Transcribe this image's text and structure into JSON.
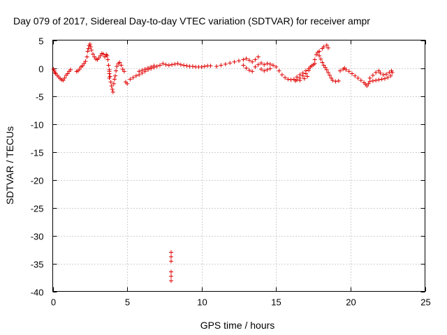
{
  "chart_data": {
    "type": "scatter",
    "title": "Day 079 of 2017, Sidereal Day-to-day VTEC variation (SDTVAR) for receiver ampr",
    "xlabel": "GPS time / hours",
    "ylabel": "SDTVAR / TECUs",
    "xlim": [
      0,
      25
    ],
    "ylim": [
      -40,
      5
    ],
    "xticks": [
      "0",
      "5",
      "10",
      "15",
      "20",
      "25"
    ],
    "yticks": [
      "5",
      "0",
      "-5",
      "-10",
      "-15",
      "-20",
      "-25",
      "-30",
      "-35",
      "-40"
    ],
    "grid": true,
    "marker": "+",
    "marker_color": "#e00000",
    "series": [
      {
        "name": "SDTVAR",
        "points": [
          [
            0.05,
            -0.2
          ],
          [
            0.1,
            -0.5
          ],
          [
            0.15,
            -0.8
          ],
          [
            0.2,
            -1.0
          ],
          [
            0.3,
            -1.3
          ],
          [
            0.4,
            -1.6
          ],
          [
            0.5,
            -1.9
          ],
          [
            0.6,
            -2.1
          ],
          [
            0.7,
            -2.2
          ],
          [
            0.8,
            -1.8
          ],
          [
            0.9,
            -1.3
          ],
          [
            1.0,
            -1.0
          ],
          [
            1.1,
            -0.6
          ],
          [
            1.2,
            -0.3
          ],
          [
            1.6,
            -0.6
          ],
          [
            1.7,
            -0.5
          ],
          [
            1.8,
            -0.2
          ],
          [
            1.9,
            0.2
          ],
          [
            2.0,
            0.4
          ],
          [
            2.1,
            0.8
          ],
          [
            2.2,
            1.2
          ],
          [
            2.3,
            2.0
          ],
          [
            2.35,
            3.0
          ],
          [
            2.4,
            3.5
          ],
          [
            2.45,
            4.0
          ],
          [
            2.5,
            4.3
          ],
          [
            2.55,
            3.8
          ],
          [
            2.6,
            3.2
          ],
          [
            2.7,
            2.5
          ],
          [
            2.8,
            2.0
          ],
          [
            2.9,
            1.6
          ],
          [
            3.0,
            1.5
          ],
          [
            3.1,
            1.8
          ],
          [
            3.2,
            2.2
          ],
          [
            3.3,
            2.6
          ],
          [
            3.4,
            2.5
          ],
          [
            3.5,
            2.0
          ],
          [
            3.6,
            2.4
          ],
          [
            3.65,
            2.2
          ],
          [
            3.7,
            1.5
          ],
          [
            3.75,
            0.5
          ],
          [
            3.8,
            -0.3
          ],
          [
            3.85,
            -1.5
          ],
          [
            3.9,
            -2.5
          ],
          [
            3.95,
            -3.2
          ],
          [
            4.0,
            -3.8
          ],
          [
            4.05,
            -4.3
          ],
          [
            4.1,
            -2.8
          ],
          [
            4.15,
            -2.0
          ],
          [
            4.2,
            -1.4
          ],
          [
            4.25,
            -0.5
          ],
          [
            4.3,
            0.3
          ],
          [
            4.4,
            0.8
          ],
          [
            4.5,
            1.0
          ],
          [
            4.6,
            0.5
          ],
          [
            4.7,
            -0.2
          ],
          [
            4.8,
            -0.6
          ],
          [
            4.9,
            -2.5
          ],
          [
            5.0,
            -2.8
          ],
          [
            3.8,
            -1.0
          ],
          [
            3.8,
            -1.8
          ],
          [
            3.8,
            -0.6
          ],
          [
            5.2,
            -2.0
          ],
          [
            5.4,
            -1.7
          ],
          [
            5.6,
            -1.4
          ],
          [
            5.8,
            -1.2
          ],
          [
            6.0,
            -0.9
          ],
          [
            6.2,
            -0.6
          ],
          [
            6.4,
            -0.3
          ],
          [
            6.6,
            -0.1
          ],
          [
            6.8,
            0.1
          ],
          [
            7.0,
            0.3
          ],
          [
            7.2,
            0.5
          ],
          [
            7.4,
            0.8
          ],
          [
            7.6,
            0.6
          ],
          [
            7.8,
            0.5
          ],
          [
            8.0,
            0.6
          ],
          [
            8.2,
            0.7
          ],
          [
            8.4,
            0.8
          ],
          [
            8.6,
            0.6
          ],
          [
            8.8,
            0.5
          ],
          [
            9.0,
            0.4
          ],
          [
            9.2,
            0.3
          ],
          [
            9.4,
            0.3
          ],
          [
            9.6,
            0.2
          ],
          [
            9.8,
            0.2
          ],
          [
            10.0,
            0.2
          ],
          [
            10.2,
            0.3
          ],
          [
            10.4,
            0.4
          ],
          [
            10.6,
            0.4
          ],
          [
            5.8,
            -0.6
          ],
          [
            6.0,
            -0.4
          ],
          [
            6.2,
            -0.2
          ],
          [
            6.4,
            0.0
          ],
          [
            6.6,
            0.2
          ],
          [
            6.8,
            0.4
          ],
          [
            7.95,
            -33.0
          ],
          [
            7.95,
            -33.8
          ],
          [
            7.95,
            -34.6
          ],
          [
            7.95,
            -36.5
          ],
          [
            7.95,
            -37.3
          ],
          [
            7.95,
            -38.1
          ],
          [
            11.0,
            0.3
          ],
          [
            11.3,
            0.5
          ],
          [
            11.6,
            0.7
          ],
          [
            11.9,
            0.9
          ],
          [
            12.2,
            1.1
          ],
          [
            12.5,
            1.3
          ],
          [
            12.8,
            1.5
          ],
          [
            13.0,
            1.7
          ],
          [
            13.2,
            1.4
          ],
          [
            13.4,
            1.1
          ],
          [
            13.6,
            1.5
          ],
          [
            13.8,
            2.0
          ],
          [
            12.8,
            0.5
          ],
          [
            13.0,
            0.0
          ],
          [
            13.2,
            -0.4
          ],
          [
            13.4,
            -0.6
          ],
          [
            13.6,
            0.2
          ],
          [
            13.8,
            0.6
          ],
          [
            14.0,
            0.9
          ],
          [
            14.2,
            0.6
          ],
          [
            14.4,
            0.8
          ],
          [
            14.6,
            0.7
          ],
          [
            14.8,
            0.5
          ],
          [
            14.0,
            -0.2
          ],
          [
            14.2,
            -0.5
          ],
          [
            14.4,
            -0.3
          ],
          [
            14.6,
            -0.1
          ],
          [
            15.0,
            0.2
          ],
          [
            15.2,
            -0.5
          ],
          [
            15.4,
            -1.2
          ],
          [
            15.6,
            -1.7
          ],
          [
            15.8,
            -2.0
          ],
          [
            16.0,
            -2.1
          ],
          [
            16.2,
            -2.0
          ],
          [
            16.4,
            -2.1
          ],
          [
            16.6,
            -1.8
          ],
          [
            16.8,
            -1.4
          ],
          [
            17.0,
            -1.0
          ],
          [
            17.2,
            -0.4
          ],
          [
            16.4,
            -1.6
          ],
          [
            16.6,
            -1.2
          ],
          [
            16.8,
            -0.9
          ],
          [
            17.0,
            -0.5
          ],
          [
            17.2,
            -0.1
          ],
          [
            17.3,
            0.2
          ],
          [
            17.4,
            0.4
          ],
          [
            17.5,
            0.6
          ],
          [
            17.6,
            0.8
          ],
          [
            16.3,
            -2.3
          ],
          [
            16.6,
            -2.2
          ],
          [
            16.9,
            -1.9
          ],
          [
            17.1,
            -1.5
          ],
          [
            17.6,
            1.5
          ],
          [
            17.7,
            2.4
          ],
          [
            17.8,
            2.8
          ],
          [
            17.9,
            2.2
          ],
          [
            18.0,
            1.6
          ],
          [
            18.1,
            1.0
          ],
          [
            18.2,
            0.5
          ],
          [
            18.3,
            0.1
          ],
          [
            18.4,
            -0.3
          ],
          [
            18.5,
            -0.8
          ],
          [
            18.6,
            -1.3
          ],
          [
            18.7,
            -1.8
          ],
          [
            18.8,
            -2.2
          ],
          [
            19.0,
            -2.4
          ],
          [
            19.2,
            -2.3
          ],
          [
            17.9,
            3.0
          ],
          [
            18.1,
            3.5
          ],
          [
            18.2,
            3.8
          ],
          [
            18.4,
            4.1
          ],
          [
            18.5,
            3.6
          ],
          [
            19.3,
            -0.5
          ],
          [
            19.5,
            -0.2
          ],
          [
            19.6,
            0.0
          ],
          [
            19.7,
            -0.3
          ],
          [
            19.9,
            -0.6
          ],
          [
            20.1,
            -1.0
          ],
          [
            20.3,
            -1.4
          ],
          [
            20.5,
            -1.8
          ],
          [
            20.7,
            -2.2
          ],
          [
            20.9,
            -2.6
          ],
          [
            21.0,
            -2.9
          ],
          [
            21.1,
            -3.2
          ],
          [
            21.2,
            -2.8
          ],
          [
            21.3,
            -2.4
          ],
          [
            21.5,
            -2.3
          ],
          [
            21.7,
            -2.2
          ],
          [
            21.9,
            -2.1
          ],
          [
            22.1,
            -2.0
          ],
          [
            22.3,
            -1.9
          ],
          [
            22.5,
            -1.7
          ],
          [
            22.7,
            -1.4
          ],
          [
            22.8,
            -0.8
          ],
          [
            21.3,
            -1.8
          ],
          [
            21.5,
            -1.3
          ],
          [
            21.7,
            -0.8
          ],
          [
            21.9,
            -0.5
          ],
          [
            22.0,
            -0.9
          ],
          [
            22.2,
            -1.2
          ],
          [
            22.4,
            -1.1
          ],
          [
            22.6,
            -0.8
          ],
          [
            22.75,
            -0.5
          ]
        ]
      }
    ]
  }
}
